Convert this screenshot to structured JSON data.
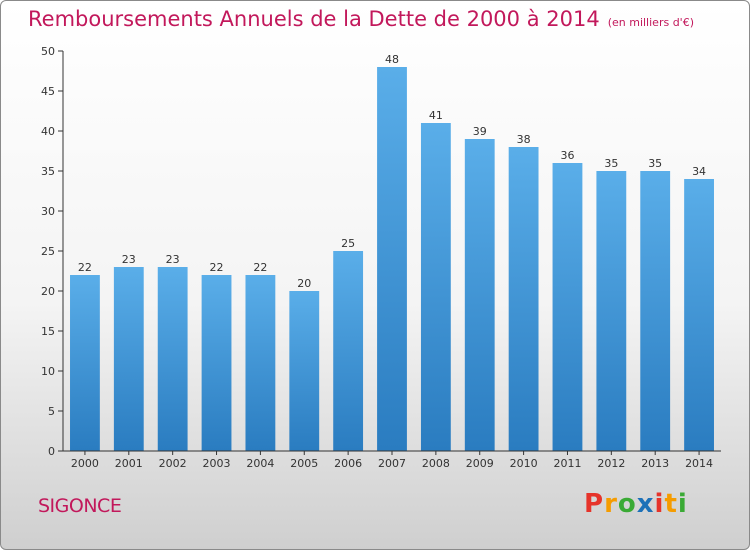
{
  "chart_data": {
    "type": "bar",
    "title": "Remboursements Annuels de la Dette de 2000 à 2014",
    "unit_note": "(en milliers d'€)",
    "categories": [
      "2000",
      "2001",
      "2002",
      "2003",
      "2004",
      "2005",
      "2006",
      "2007",
      "2008",
      "2009",
      "2010",
      "2011",
      "2012",
      "2013",
      "2014"
    ],
    "values": [
      22,
      23,
      23,
      22,
      22,
      20,
      25,
      48,
      41,
      39,
      38,
      36,
      35,
      35,
      34
    ],
    "yticks": [
      0,
      5,
      10,
      15,
      20,
      25,
      30,
      35,
      40,
      45,
      50
    ],
    "ylim": [
      0,
      50
    ],
    "xlabel": "",
    "ylabel": "",
    "grid": false,
    "bar_color_top": "#5aaee9",
    "bar_color_bottom": "#2a7cc0"
  },
  "footer": {
    "commune": "SIGONCE",
    "logo": "Proxiti",
    "logo_colors": [
      "#e6332a",
      "#f59c00",
      "#3aaa35",
      "#1d71b8",
      "#e6332a",
      "#f59c00",
      "#3aaa35"
    ]
  },
  "colors": {
    "title": "#c2185b",
    "axis": "#333333"
  }
}
